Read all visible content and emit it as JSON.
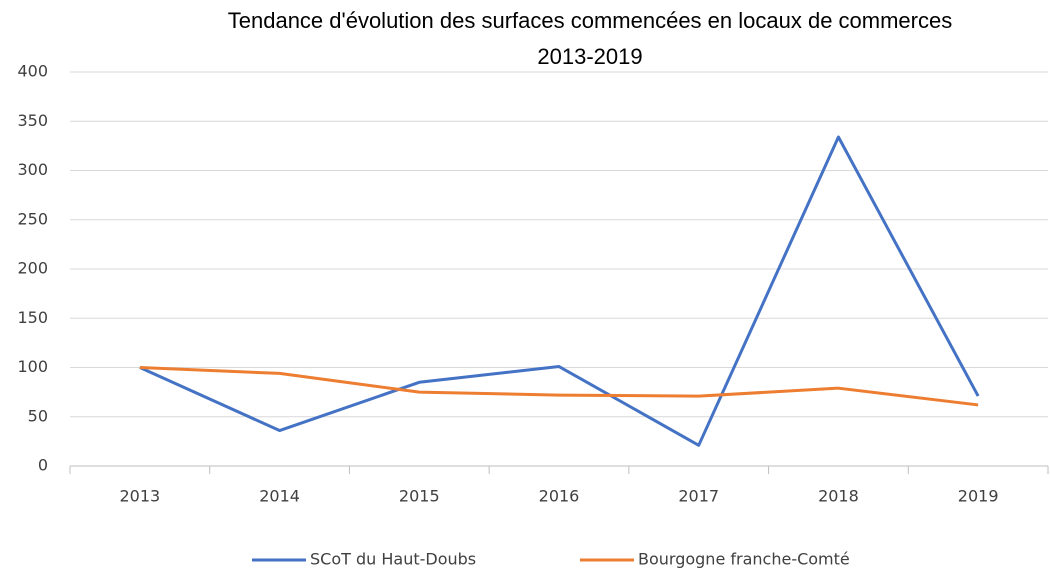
{
  "chart_data": {
    "type": "line",
    "title": [
      "Tendance d'évolution des surfaces commencées en locaux de commerces",
      "2013-2019"
    ],
    "categories": [
      "2013",
      "2014",
      "2015",
      "2016",
      "2017",
      "2018",
      "2019"
    ],
    "series": [
      {
        "name": "SCoT du Haut-Doubs",
        "color": "#4472c4",
        "values": [
          100,
          36,
          85,
          101,
          21,
          334,
          71
        ]
      },
      {
        "name": "Bourgogne franche-Comté",
        "color": "#ed7d31",
        "values": [
          100,
          94,
          75,
          72,
          71,
          79,
          62
        ]
      }
    ],
    "ylim": [
      0,
      400
    ],
    "yticks": [
      0,
      50,
      100,
      150,
      200,
      250,
      300,
      350,
      400
    ],
    "grid": true,
    "legend": "bottom"
  }
}
